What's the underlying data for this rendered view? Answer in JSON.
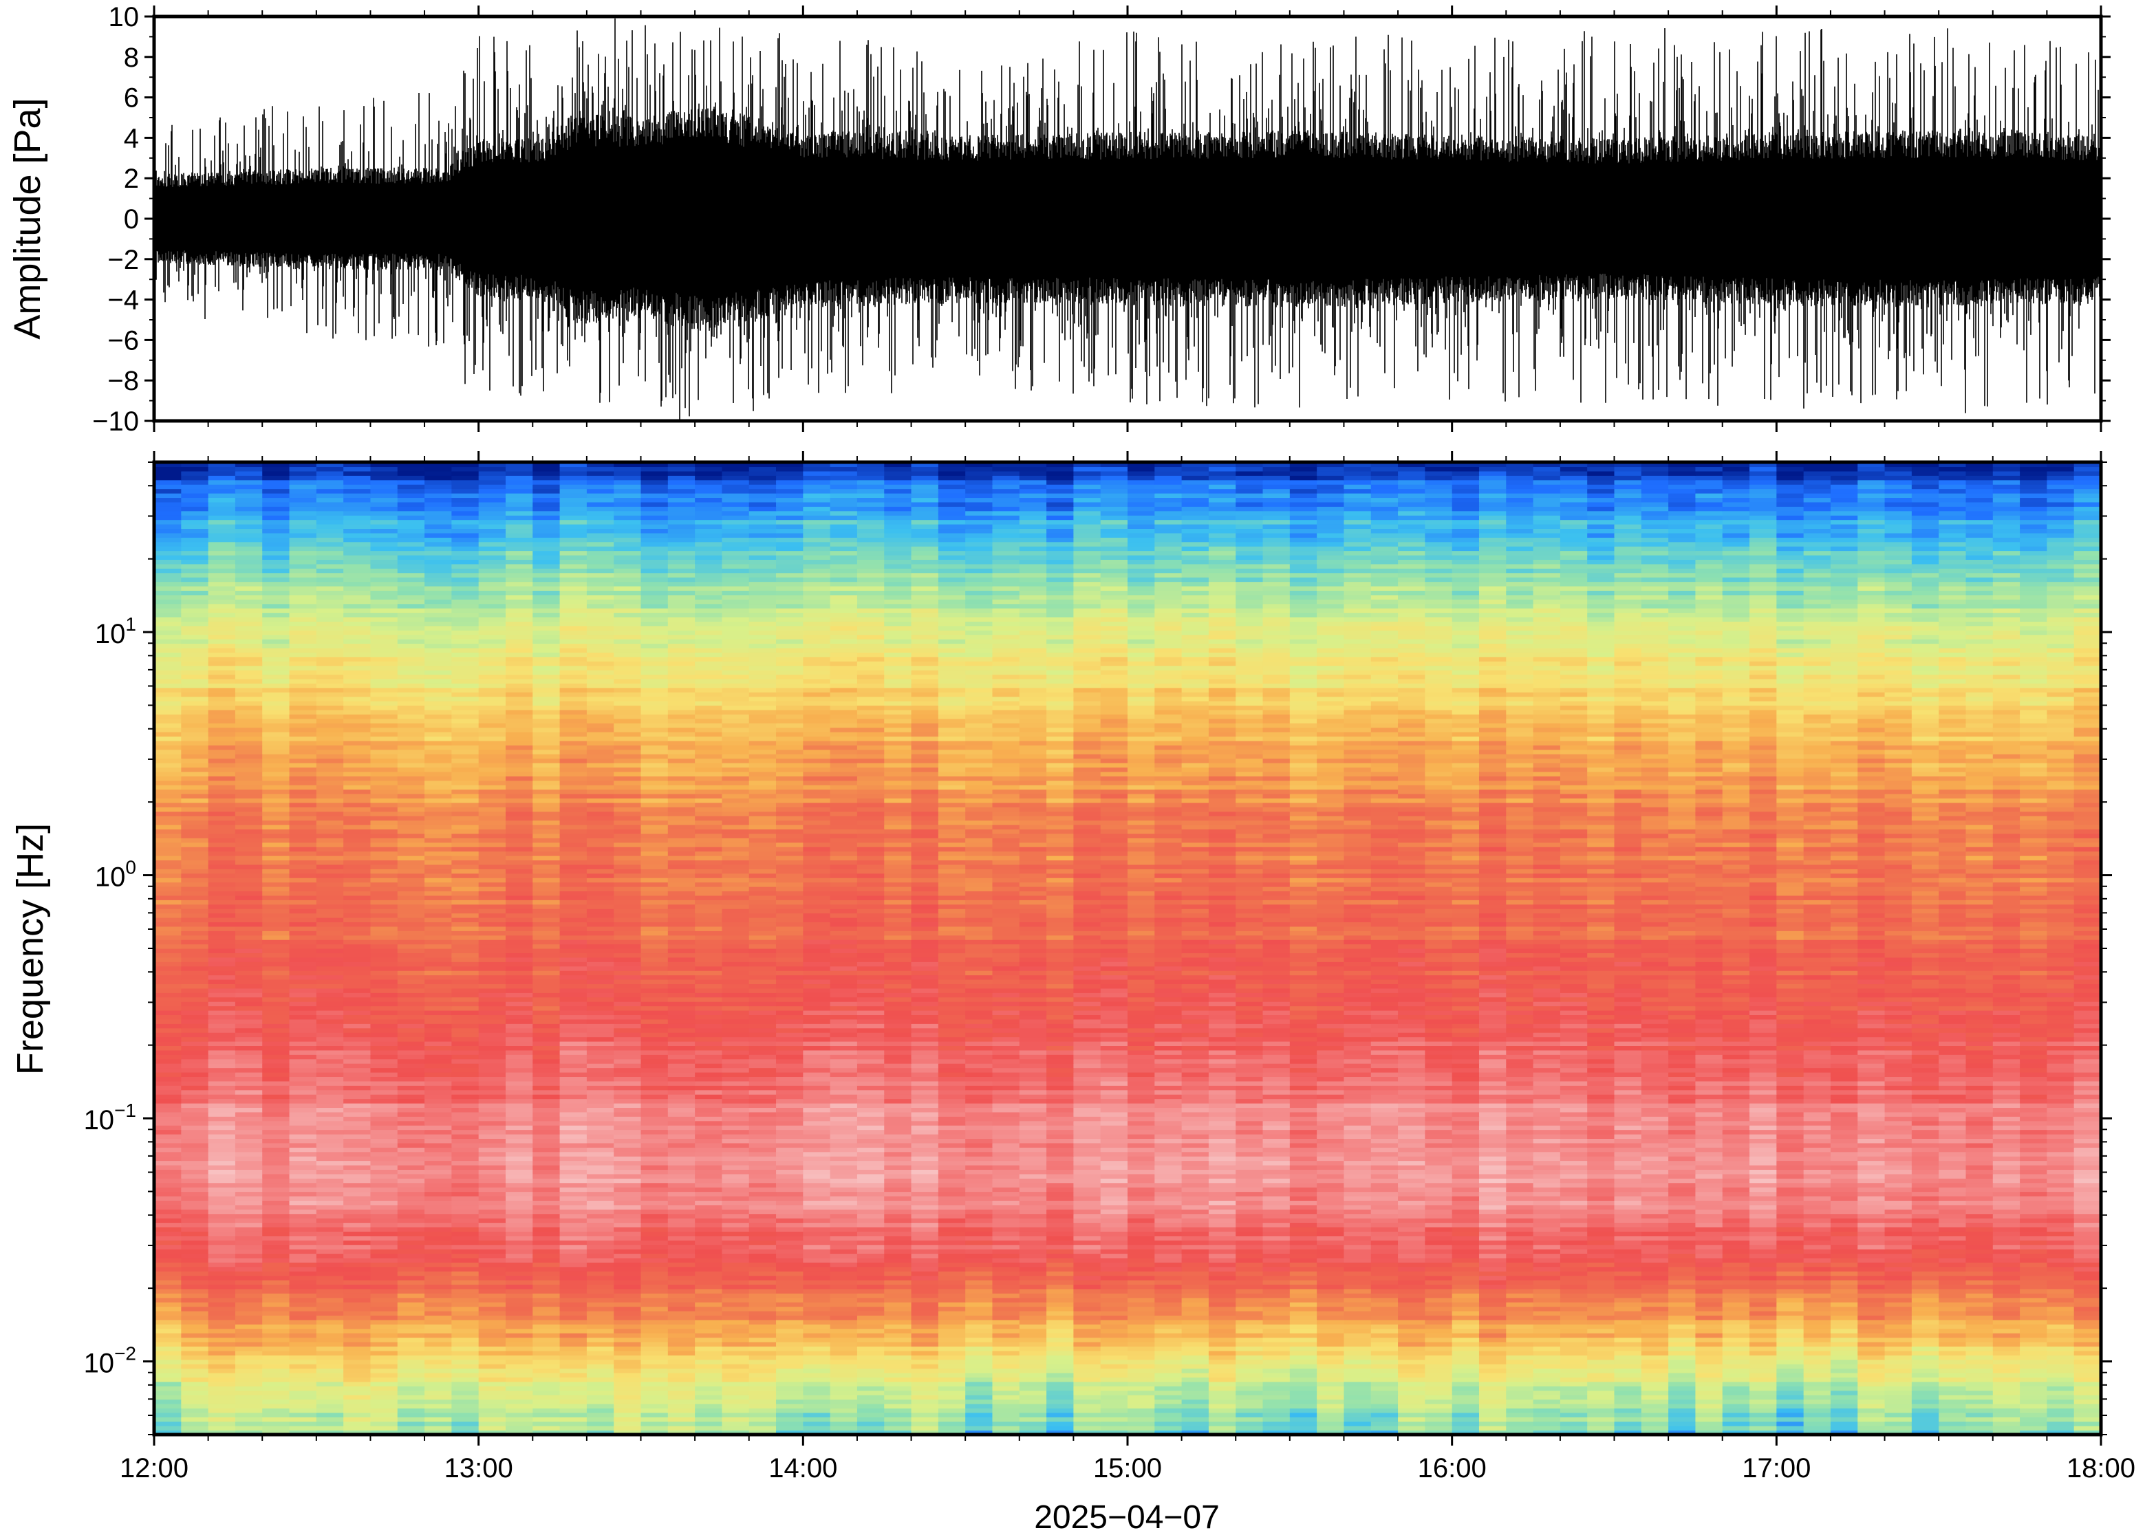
{
  "chart_data": [
    {
      "type": "line",
      "panel": "waveform",
      "ylabel": "Amplitude [Pa]",
      "ylim": [
        -10,
        10
      ],
      "yticks": [
        -10,
        -8,
        -6,
        -4,
        -2,
        0,
        2,
        4,
        6,
        8,
        10
      ],
      "ytick_labels": [
        "−10",
        "−8",
        "−6",
        "−4",
        "−2",
        "0",
        "2",
        "4",
        "6",
        "8",
        "10"
      ],
      "x_range": [
        "12:00",
        "18:00"
      ],
      "envelope": {
        "time_hours": [
          12.0,
          12.5,
          12.9,
          13.0,
          13.2,
          13.3,
          13.5,
          13.7,
          14.0,
          14.5,
          15.0,
          15.5,
          16.0,
          16.5,
          17.0,
          17.5,
          18.0
        ],
        "core_amplitude": [
          2.0,
          2.3,
          2.3,
          3.6,
          3.7,
          4.8,
          4.5,
          5.2,
          4.0,
          3.8,
          3.9,
          4.0,
          3.8,
          3.6,
          3.9,
          4.0,
          3.8
        ],
        "peak_amplitude": [
          4.5,
          6.0,
          6.5,
          9.5,
          9.5,
          10,
          10,
          10,
          9.5,
          8.0,
          9.5,
          9.5,
          9.0,
          9.5,
          9.5,
          10,
          9.0
        ]
      },
      "line_color": "#000000"
    },
    {
      "type": "heatmap",
      "panel": "spectrogram",
      "ylabel": "Frequency [Hz]",
      "yscale": "log",
      "ylim": [
        0.005,
        50
      ],
      "yticks": [
        {
          "base": "10",
          "exp": "−2",
          "value": 0.01
        },
        {
          "base": "10",
          "exp": "−1",
          "value": 0.1
        },
        {
          "base": "10",
          "exp": "0",
          "value": 1
        },
        {
          "base": "10",
          "exp": "1",
          "value": 10
        }
      ],
      "xlabel": "2025−04−07",
      "x_range": [
        "12:00",
        "18:00"
      ],
      "xticks": [
        "12:00",
        "13:00",
        "14:00",
        "15:00",
        "16:00",
        "17:00",
        "18:00"
      ],
      "colormap_stops": [
        "#001a8c",
        "#1f6fff",
        "#3cc0f0",
        "#8ee0b0",
        "#d8f08a",
        "#f8e070",
        "#f8b050",
        "#f07050",
        "#f05050",
        "#f48888",
        "#f8c8c8"
      ],
      "colorbar": false
    }
  ]
}
